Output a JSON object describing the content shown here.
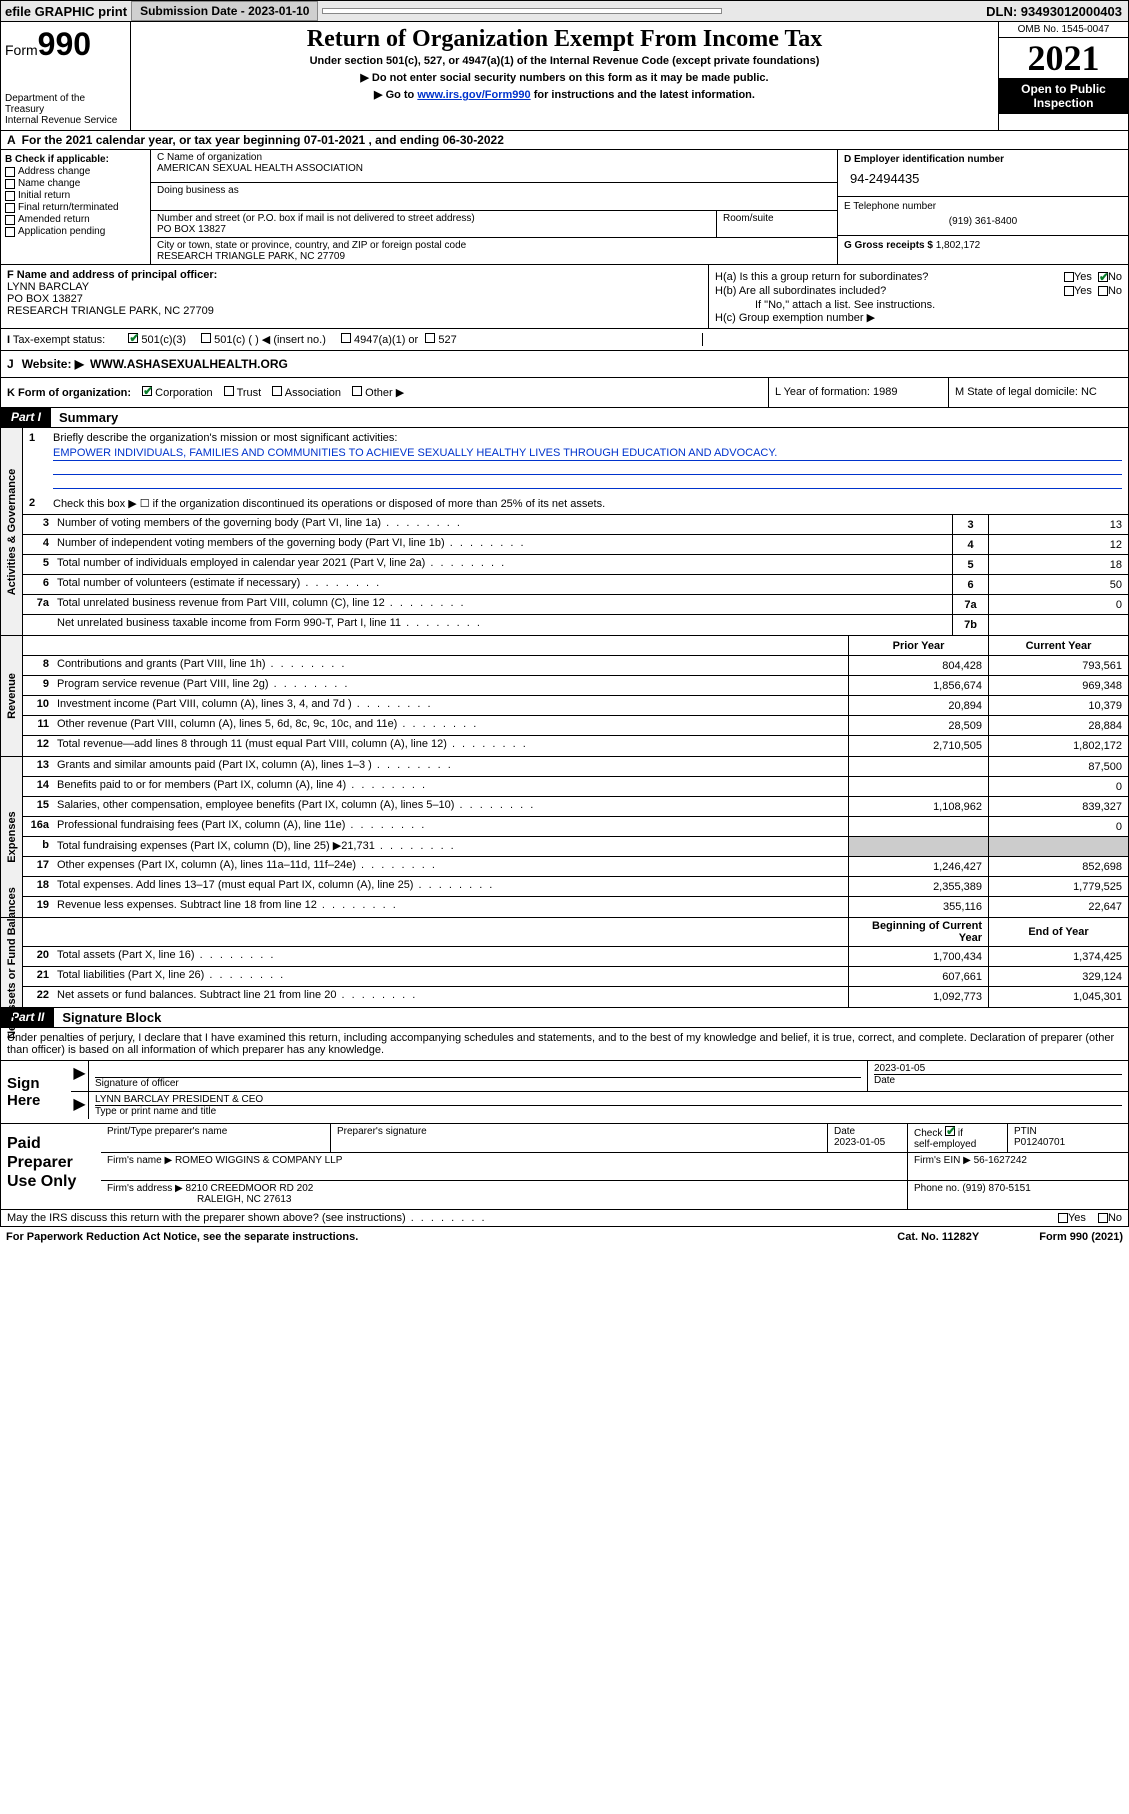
{
  "topbar": {
    "efile": "efile GRAPHIC print",
    "submission_label": "Submission Date - 2023-01-10",
    "dln": "DLN: 93493012000403"
  },
  "header": {
    "form_prefix": "Form",
    "form_number": "990",
    "dept": "Department of the Treasury",
    "irs": "Internal Revenue Service",
    "title": "Return of Organization Exempt From Income Tax",
    "subtitle": "Under section 501(c), 527, or 4947(a)(1) of the Internal Revenue Code (except private foundations)",
    "note1": "▶ Do not enter social security numbers on this form as it may be made public.",
    "note2_pre": "▶ Go to ",
    "note2_link": "www.irs.gov/Form990",
    "note2_post": " for instructions and the latest information.",
    "omb": "OMB No. 1545-0047",
    "year": "2021",
    "open": "Open to Public Inspection"
  },
  "row_a": {
    "label": "A",
    "text": "For the 2021 calendar year, or tax year beginning 07-01-2021   , and ending 06-30-2022"
  },
  "col_b": {
    "label": "B Check if applicable:",
    "items": [
      "Address change",
      "Name change",
      "Initial return",
      "Final return/terminated",
      "Amended return",
      "Application pending"
    ]
  },
  "col_c": {
    "name_label": "C Name of organization",
    "name": "AMERICAN SEXUAL HEALTH ASSOCIATION",
    "dba_label": "Doing business as",
    "dba": "",
    "street_label": "Number and street (or P.O. box if mail is not delivered to street address)",
    "room_label": "Room/suite",
    "street": "PO BOX 13827",
    "city_label": "City or town, state or province, country, and ZIP or foreign postal code",
    "city": "RESEARCH TRIANGLE PARK, NC  27709"
  },
  "col_d": {
    "ein_label": "D Employer identification number",
    "ein": "94-2494435",
    "phone_label": "E Telephone number",
    "phone": "(919) 361-8400",
    "gross_label": "G Gross receipts $",
    "gross": "1,802,172"
  },
  "col_f": {
    "label": "F  Name and address of principal officer:",
    "name": "LYNN BARCLAY",
    "addr1": "PO BOX 13827",
    "addr2": "RESEARCH TRIANGLE PARK, NC  27709"
  },
  "col_h": {
    "ha": "H(a)  Is this a group return for subordinates?",
    "hb": "H(b)  Are all subordinates included?",
    "hb_note": "If \"No,\" attach a list. See instructions.",
    "hc": "H(c)  Group exemption number ▶",
    "yes": "Yes",
    "no": "No"
  },
  "row_i": {
    "label": "I",
    "text": "Tax-exempt status:",
    "opt1": "501(c)(3)",
    "opt2": "501(c) (  ) ◀ (insert no.)",
    "opt3": "4947(a)(1) or",
    "opt4": "527"
  },
  "row_j": {
    "label": "J",
    "text": "Website: ▶",
    "url": "WWW.ASHASEXUALHEALTH.ORG"
  },
  "row_k": {
    "left": "K Form of organization:",
    "corp": "Corporation",
    "trust": "Trust",
    "assoc": "Association",
    "other": "Other ▶",
    "l": "L Year of formation: 1989",
    "m": "M State of legal domicile: NC"
  },
  "parts": {
    "p1_tag": "Part I",
    "p1_title": "Summary",
    "p2_tag": "Part II",
    "p2_title": "Signature Block"
  },
  "mission": {
    "q1": "Briefly describe the organization's mission or most significant activities:",
    "text": "EMPOWER INDIVIDUALS, FAMILIES AND COMMUNITIES TO ACHIEVE SEXUALLY HEALTHY LIVES THROUGH EDUCATION AND ADVOCACY.",
    "q2": "Check this box ▶ ☐  if the organization discontinued its operations or disposed of more than 25% of its net assets."
  },
  "side_labels": {
    "gov": "Activities & Governance",
    "rev": "Revenue",
    "exp": "Expenses",
    "net": "Net Assets or Fund Balances"
  },
  "gov_lines": [
    {
      "n": "3",
      "d": "Number of voting members of the governing body (Part VI, line 1a)",
      "box": "3",
      "v": "13"
    },
    {
      "n": "4",
      "d": "Number of independent voting members of the governing body (Part VI, line 1b)",
      "box": "4",
      "v": "12"
    },
    {
      "n": "5",
      "d": "Total number of individuals employed in calendar year 2021 (Part V, line 2a)",
      "box": "5",
      "v": "18"
    },
    {
      "n": "6",
      "d": "Total number of volunteers (estimate if necessary)",
      "box": "6",
      "v": "50"
    },
    {
      "n": "7a",
      "d": "Total unrelated business revenue from Part VIII, column (C), line 12",
      "box": "7a",
      "v": "0"
    },
    {
      "n": "",
      "d": "Net unrelated business taxable income from Form 990-T, Part I, line 11",
      "box": "7b",
      "v": ""
    }
  ],
  "col_hdrs": {
    "prior": "Prior Year",
    "current": "Current Year",
    "begin": "Beginning of Current Year",
    "end": "End of Year"
  },
  "rev_lines": [
    {
      "n": "8",
      "d": "Contributions and grants (Part VIII, line 1h)",
      "p": "804,428",
      "c": "793,561"
    },
    {
      "n": "9",
      "d": "Program service revenue (Part VIII, line 2g)",
      "p": "1,856,674",
      "c": "969,348"
    },
    {
      "n": "10",
      "d": "Investment income (Part VIII, column (A), lines 3, 4, and 7d )",
      "p": "20,894",
      "c": "10,379"
    },
    {
      "n": "11",
      "d": "Other revenue (Part VIII, column (A), lines 5, 6d, 8c, 9c, 10c, and 11e)",
      "p": "28,509",
      "c": "28,884"
    },
    {
      "n": "12",
      "d": "Total revenue—add lines 8 through 11 (must equal Part VIII, column (A), line 12)",
      "p": "2,710,505",
      "c": "1,802,172"
    }
  ],
  "exp_lines": [
    {
      "n": "13",
      "d": "Grants and similar amounts paid (Part IX, column (A), lines 1–3 )",
      "p": "",
      "c": "87,500"
    },
    {
      "n": "14",
      "d": "Benefits paid to or for members (Part IX, column (A), line 4)",
      "p": "",
      "c": "0"
    },
    {
      "n": "15",
      "d": "Salaries, other compensation, employee benefits (Part IX, column (A), lines 5–10)",
      "p": "1,108,962",
      "c": "839,327"
    },
    {
      "n": "16a",
      "d": "Professional fundraising fees (Part IX, column (A), line 11e)",
      "p": "",
      "c": "0"
    },
    {
      "n": "b",
      "d": "Total fundraising expenses (Part IX, column (D), line 25) ▶21,731",
      "p": "grey",
      "c": "grey"
    },
    {
      "n": "17",
      "d": "Other expenses (Part IX, column (A), lines 11a–11d, 11f–24e)",
      "p": "1,246,427",
      "c": "852,698"
    },
    {
      "n": "18",
      "d": "Total expenses. Add lines 13–17 (must equal Part IX, column (A), line 25)",
      "p": "2,355,389",
      "c": "1,779,525"
    },
    {
      "n": "19",
      "d": "Revenue less expenses. Subtract line 18 from line 12",
      "p": "355,116",
      "c": "22,647"
    }
  ],
  "net_lines": [
    {
      "n": "20",
      "d": "Total assets (Part X, line 16)",
      "p": "1,700,434",
      "c": "1,374,425"
    },
    {
      "n": "21",
      "d": "Total liabilities (Part X, line 26)",
      "p": "607,661",
      "c": "329,124"
    },
    {
      "n": "22",
      "d": "Net assets or fund balances. Subtract line 21 from line 20",
      "p": "1,092,773",
      "c": "1,045,301"
    }
  ],
  "sig": {
    "intro": "Under penalties of perjury, I declare that I have examined this return, including accompanying schedules and statements, and to the best of my knowledge and belief, it is true, correct, and complete. Declaration of preparer (other than officer) is based on all information of which preparer has any knowledge.",
    "sign_here": "Sign Here",
    "sig_label": "Signature of officer",
    "date_label": "Date",
    "date": "2023-01-05",
    "name": "LYNN BARCLAY  PRESIDENT & CEO",
    "name_label": "Type or print name and title"
  },
  "prep": {
    "title": "Paid Preparer Use Only",
    "h1": "Print/Type preparer's name",
    "h2": "Preparer's signature",
    "h3": "Date",
    "date": "2023-01-05",
    "h4": "Check ☐ if self-employed",
    "h5": "PTIN",
    "ptin": "P01240701",
    "firm_name_lbl": "Firm's name     ▶",
    "firm_name": "ROMEO WIGGINS & COMPANY LLP",
    "firm_ein_lbl": "Firm's EIN ▶",
    "firm_ein": "56-1627242",
    "firm_addr_lbl": "Firm's address ▶",
    "firm_addr1": "8210 CREEDMOOR RD 202",
    "firm_addr2": "RALEIGH, NC  27613",
    "phone_lbl": "Phone no.",
    "phone": "(919) 870-5151"
  },
  "footer": {
    "discuss": "May the IRS discuss this return with the preparer shown above? (see instructions)",
    "yes": "Yes",
    "no": "No",
    "paperwork": "For Paperwork Reduction Act Notice, see the separate instructions.",
    "cat": "Cat. No. 11282Y",
    "form": "Form 990 (2021)"
  }
}
